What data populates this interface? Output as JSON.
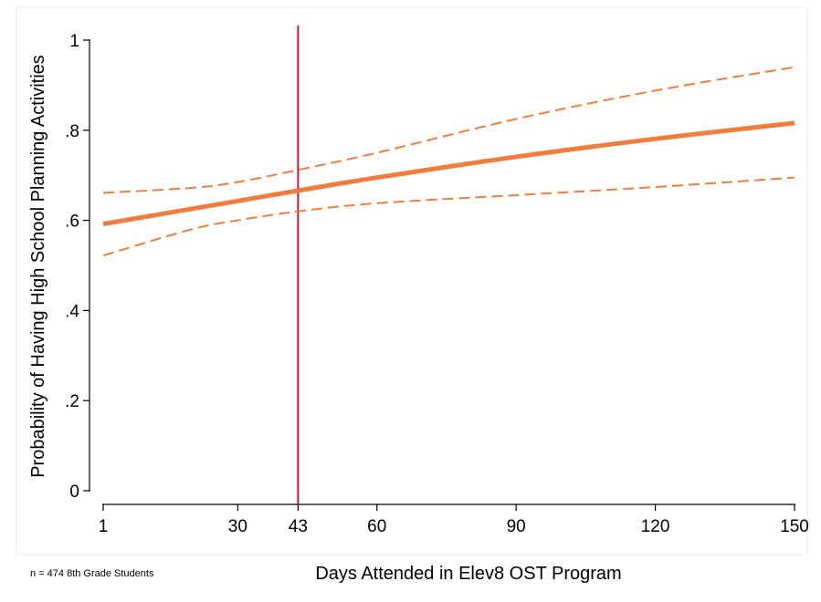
{
  "chart_data": {
    "type": "line",
    "xlabel": "Days Attended in Elev8 OST Program",
    "ylabel": "Probability of Having High School Planning Activities",
    "note": "n = 474 8th Grade Students",
    "xlim": [
      1,
      150
    ],
    "ylim": [
      0,
      1
    ],
    "x_ticks": [
      1,
      30,
      43,
      60,
      90,
      120,
      150
    ],
    "y_ticks": [
      {
        "value": 0,
        "label": "0"
      },
      {
        "value": 0.2,
        "label": ".2"
      },
      {
        "value": 0.4,
        "label": ".4"
      },
      {
        "value": 0.6,
        "label": ".6"
      },
      {
        "value": 0.8,
        "label": ".8"
      },
      {
        "value": 1,
        "label": "1"
      }
    ],
    "reference_line_x": 43,
    "grid": false,
    "colors": {
      "line": "#f07d3c",
      "reference": "#c8143c",
      "axis": "#000000"
    },
    "series": [
      {
        "style": "solid",
        "x": [
          1,
          30,
          43,
          60,
          90,
          120,
          150
        ],
        "y": [
          0.592,
          0.643,
          0.666,
          0.695,
          0.741,
          0.781,
          0.816
        ]
      },
      {
        "style": "dashed",
        "x": [
          1,
          20,
          30,
          43,
          60,
          90,
          120,
          150
        ],
        "y": [
          0.661,
          0.672,
          0.685,
          0.712,
          0.75,
          0.825,
          0.888,
          0.94
        ]
      },
      {
        "style": "dashed",
        "x": [
          1,
          20,
          30,
          43,
          60,
          90,
          120,
          150
        ],
        "y": [
          0.522,
          0.58,
          0.6,
          0.62,
          0.638,
          0.656,
          0.674,
          0.695
        ]
      }
    ]
  }
}
